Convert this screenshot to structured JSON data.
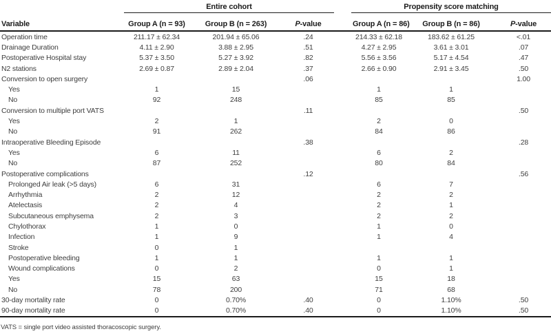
{
  "table": {
    "variable_header": "Variable",
    "groups": [
      {
        "title": "Entire cohort",
        "columns": [
          "Group A (n = 93)",
          "Group B (n = 263)",
          "P-value"
        ]
      },
      {
        "title": "Propensity score matching",
        "columns": [
          "Group A (n = 86)",
          "Group B (n = 86)",
          "P-value"
        ]
      }
    ],
    "rows": [
      {
        "label": "Operation time",
        "indent": 0,
        "values": [
          "211.17 ± 62.34",
          "201.94 ± 65.06",
          ".24",
          "214.33 ± 62.18",
          "183.62 ± 61.25",
          "<.01"
        ]
      },
      {
        "label": "Drainage Duration",
        "indent": 0,
        "values": [
          "4.11 ± 2.90",
          "3.88 ± 2.95",
          ".51",
          "4.27 ± 2.95",
          "3.61 ± 3.01",
          ".07"
        ]
      },
      {
        "label": "Postoperative Hospital stay",
        "indent": 0,
        "values": [
          "5.37 ± 3.50",
          "5.27 ± 3.92",
          ".82",
          "5.56 ± 3.56",
          "5.17 ± 4.54",
          ".47"
        ]
      },
      {
        "label": "N2 stations",
        "indent": 0,
        "values": [
          "2.69 ± 0.87",
          "2.89 ± 2.04",
          ".37",
          "2.66 ± 0.90",
          "2.91 ± 3.45",
          ".50"
        ]
      },
      {
        "label": "Conversion to open surgery",
        "indent": 0,
        "values": [
          "",
          "",
          ".06",
          "",
          "",
          "1.00"
        ]
      },
      {
        "label": "Yes",
        "indent": 1,
        "values": [
          "1",
          "15",
          "",
          "1",
          "1",
          ""
        ]
      },
      {
        "label": "No",
        "indent": 1,
        "values": [
          "92",
          "248",
          "",
          "85",
          "85",
          ""
        ]
      },
      {
        "label": "Conversion to multiple port VATS",
        "indent": 0,
        "values": [
          "",
          "",
          ".11",
          "",
          "",
          ".50"
        ]
      },
      {
        "label": "Yes",
        "indent": 1,
        "values": [
          "2",
          "1",
          "",
          "2",
          "0",
          ""
        ]
      },
      {
        "label": "No",
        "indent": 1,
        "values": [
          "91",
          "262",
          "",
          "84",
          "86",
          ""
        ]
      },
      {
        "label": "Intraoperative Bleeding Episode",
        "indent": 0,
        "values": [
          "",
          "",
          ".38",
          "",
          "",
          ".28"
        ]
      },
      {
        "label": "Yes",
        "indent": 1,
        "values": [
          "6",
          "11",
          "",
          "6",
          "2",
          ""
        ]
      },
      {
        "label": "No",
        "indent": 1,
        "values": [
          "87",
          "252",
          "",
          "80",
          "84",
          ""
        ]
      },
      {
        "label": "Postoperative complications",
        "indent": 0,
        "values": [
          "",
          "",
          ".12",
          "",
          "",
          ".56"
        ]
      },
      {
        "label": "Prolonged Air leak (>5 days)",
        "indent": 1,
        "values": [
          "6",
          "31",
          "",
          "6",
          "7",
          ""
        ]
      },
      {
        "label": "Arrhythmia",
        "indent": 1,
        "values": [
          "2",
          "12",
          "",
          "2",
          "2",
          ""
        ]
      },
      {
        "label": "Atelectasis",
        "indent": 1,
        "values": [
          "2",
          "4",
          "",
          "2",
          "1",
          ""
        ]
      },
      {
        "label": "Subcutaneous emphysema",
        "indent": 1,
        "values": [
          "2",
          "3",
          "",
          "2",
          "2",
          ""
        ]
      },
      {
        "label": "Chylothorax",
        "indent": 1,
        "values": [
          "1",
          "0",
          "",
          "1",
          "0",
          ""
        ]
      },
      {
        "label": "Infection",
        "indent": 1,
        "values": [
          "1",
          "9",
          "",
          "1",
          "4",
          ""
        ]
      },
      {
        "label": "Stroke",
        "indent": 1,
        "values": [
          "0",
          "1",
          "",
          "",
          "",
          ""
        ]
      },
      {
        "label": "Postoperative bleeding",
        "indent": 1,
        "values": [
          "1",
          "1",
          "",
          "1",
          "1",
          ""
        ]
      },
      {
        "label": "Wound complications",
        "indent": 1,
        "values": [
          "0",
          "2",
          "",
          "0",
          "1",
          ""
        ]
      },
      {
        "label": "Yes",
        "indent": 1,
        "values": [
          "15",
          "63",
          "",
          "15",
          "18",
          ""
        ]
      },
      {
        "label": "No",
        "indent": 1,
        "values": [
          "78",
          "200",
          "",
          "71",
          "68",
          ""
        ]
      },
      {
        "label": "30-day mortality rate",
        "indent": 0,
        "values": [
          "0",
          "0.70%",
          ".40",
          "0",
          "1.10%",
          ".50"
        ]
      },
      {
        "label": "90-day mortality rate",
        "indent": 0,
        "values": [
          "0",
          "0.70%",
          ".40",
          "0",
          "1.10%",
          ".50"
        ]
      }
    ],
    "footnote": "VATS = single port video assisted thoracoscopic surgery."
  },
  "colors": {
    "text": "#3d3d3d",
    "heading": "#1c1c1c",
    "rule": "#1a1a1a",
    "background": "#ffffff"
  }
}
